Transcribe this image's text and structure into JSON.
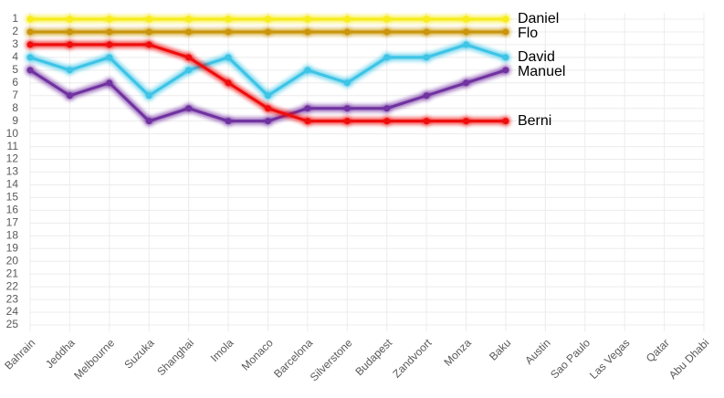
{
  "chart_data": {
    "type": "line",
    "categories": [
      "Bahrain",
      "Jeddha",
      "Melbourne",
      "Suzuka",
      "Shanghai",
      "Imola",
      "Monaco",
      "Barcelona",
      "Silverstone",
      "Budapest",
      "Zandvoort",
      "Monza",
      "Baku",
      "Austin",
      "Sao Paulo",
      "Las Vegas",
      "Qatar",
      "Abu Dhabi"
    ],
    "series": [
      {
        "name": "Daniel",
        "color": "#f7ec1e",
        "values": [
          1,
          1,
          1,
          1,
          1,
          1,
          1,
          1,
          1,
          1,
          1,
          1,
          1,
          null,
          null,
          null,
          null,
          null
        ]
      },
      {
        "name": "Flo",
        "color": "#c9950c",
        "values": [
          2,
          2,
          2,
          2,
          2,
          2,
          2,
          2,
          2,
          2,
          2,
          2,
          2,
          null,
          null,
          null,
          null,
          null
        ]
      },
      {
        "name": "David",
        "color": "#3cc4e6",
        "values": [
          4,
          5,
          4,
          7,
          5,
          4,
          7,
          5,
          6,
          4,
          4,
          3,
          4,
          null,
          null,
          null,
          null,
          null
        ]
      },
      {
        "name": "Manuel",
        "color": "#7030a0",
        "values": [
          5,
          7,
          6,
          9,
          8,
          9,
          9,
          8,
          8,
          8,
          7,
          6,
          5,
          null,
          null,
          null,
          null,
          null
        ]
      },
      {
        "name": "Berni",
        "color": "#ee1111",
        "values": [
          3,
          3,
          3,
          3,
          4,
          6,
          8,
          9,
          9,
          9,
          9,
          9,
          9,
          null,
          null,
          null,
          null,
          null
        ]
      }
    ],
    "ylim": [
      1,
      25
    ],
    "y_inverted": true,
    "yticks": [
      1,
      2,
      3,
      4,
      5,
      6,
      7,
      8,
      9,
      10,
      11,
      12,
      13,
      14,
      15,
      16,
      17,
      18,
      19,
      20,
      21,
      22,
      23,
      24,
      25
    ],
    "grid": true
  }
}
